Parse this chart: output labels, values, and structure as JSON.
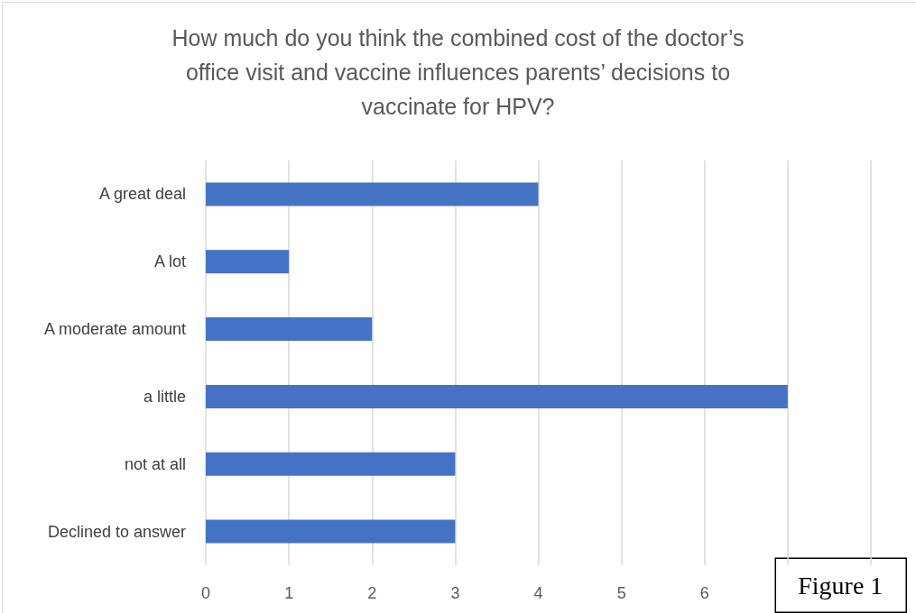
{
  "chart_data": {
    "type": "bar",
    "orientation": "horizontal",
    "title": "How much do you think the combined cost of the doctor’s\noffice visit and vaccine influences parents’ decisions to\nvaccinate for HPV?",
    "categories": [
      "A great deal",
      "A lot",
      "A moderate amount",
      "a little",
      "not at all",
      "Declined to answer"
    ],
    "values": [
      4,
      1,
      2,
      7,
      3,
      3
    ],
    "color": "#4472c4",
    "xlim": [
      0,
      8
    ],
    "xticks": [
      0,
      1,
      2,
      3,
      4,
      5,
      6,
      {
        "value": 7,
        "label": null
      },
      {
        "value": 8,
        "label": null
      }
    ],
    "grid": "x",
    "annotations": [
      "Figure 1"
    ]
  }
}
